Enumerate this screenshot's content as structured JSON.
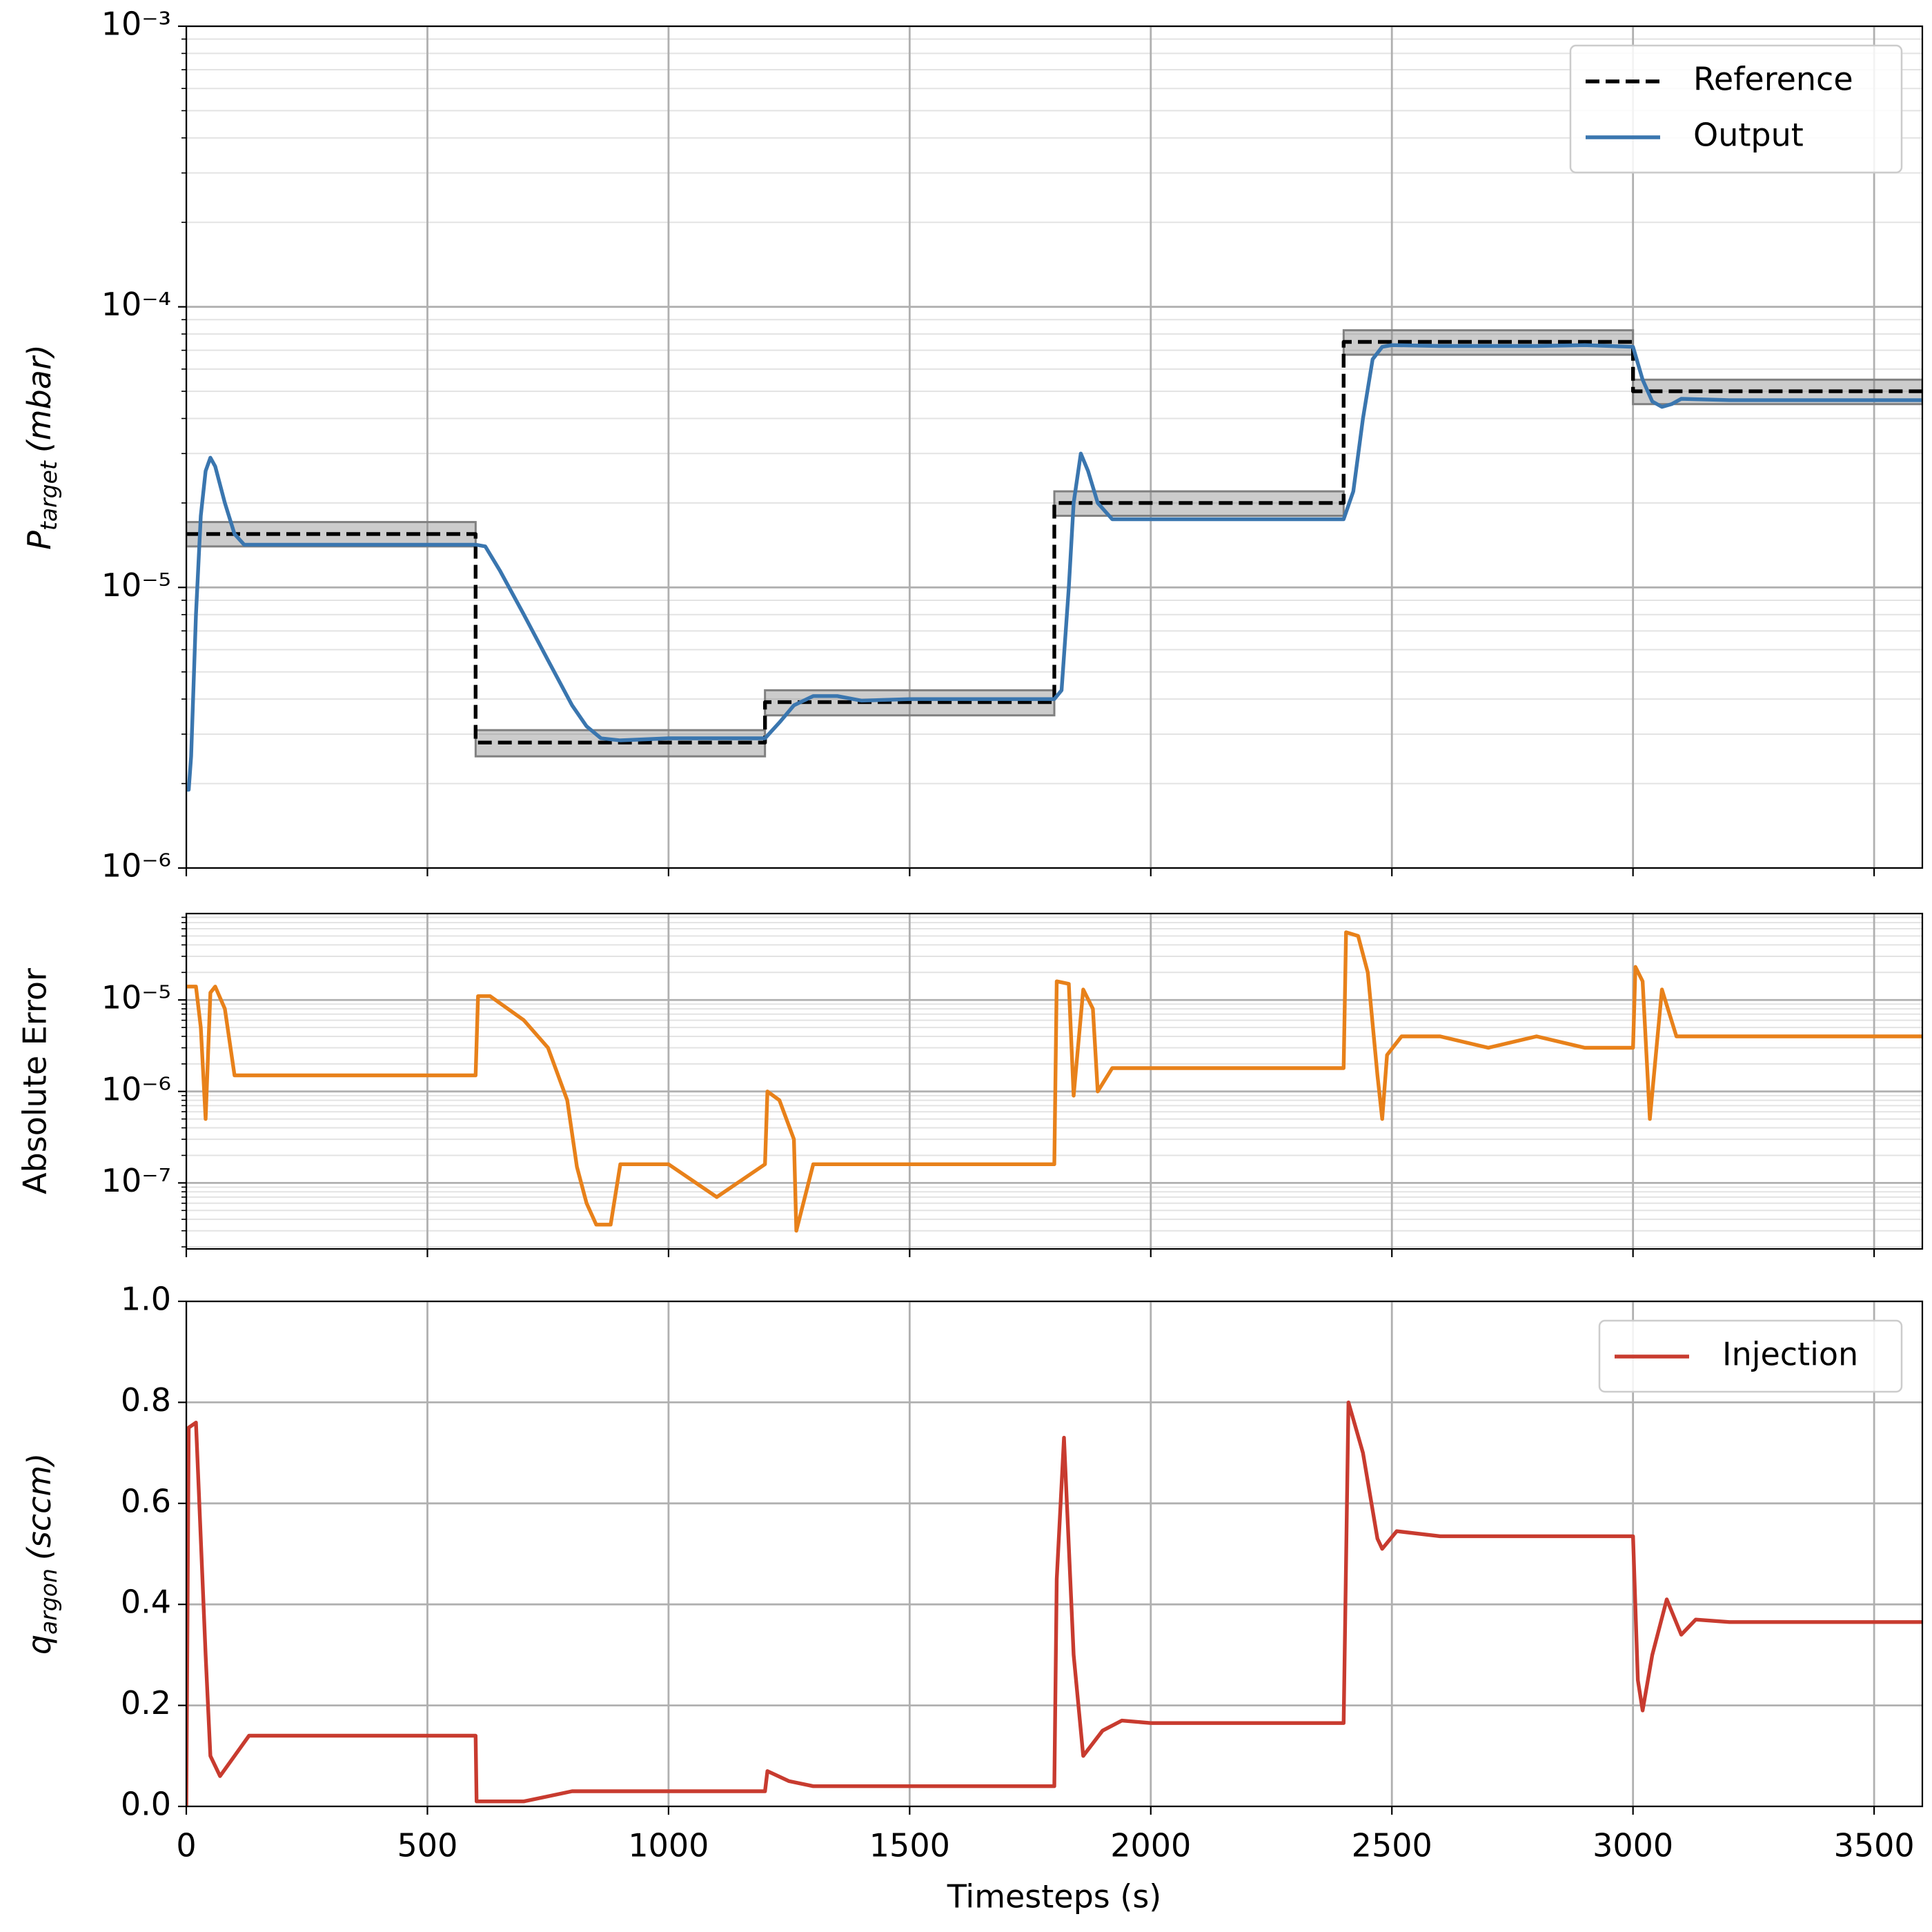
{
  "chart_data": [
    {
      "type": "line",
      "log_y": true,
      "grid": true,
      "sharex": true,
      "legend": "upper right",
      "y_label": {
        "main": "P",
        "sub": "target",
        "rest": "(mbar)"
      },
      "ylim": [
        1e-06,
        0.001
      ],
      "yticks": [
        {
          "value": 1e-06,
          "label": "10⁻⁶"
        },
        {
          "value": 1e-05,
          "label": "10⁻⁵"
        },
        {
          "value": 0.0001,
          "label": "10⁻⁴"
        },
        {
          "value": 0.001,
          "label": "10⁻³"
        }
      ],
      "yminorticks": [
        2e-06,
        3e-06,
        4e-06,
        5e-06,
        6e-06,
        7e-06,
        8e-06,
        9e-06,
        2e-05,
        3e-05,
        4e-05,
        5e-05,
        6e-05,
        7e-05,
        8e-05,
        9e-05,
        0.0002,
        0.0003,
        0.0004,
        0.0005,
        0.0006,
        0.0007,
        0.0008,
        0.0009
      ],
      "bands": {
        "color": "#808080",
        "segments": [
          {
            "x": [
              0,
              600
            ],
            "low": 1.4e-05,
            "high": 1.71e-05
          },
          {
            "x": [
              600,
              1200
            ],
            "low": 2.5e-06,
            "high": 3.1e-06
          },
          {
            "x": [
              1200,
              1800
            ],
            "low": 3.5e-06,
            "high": 4.3e-06
          },
          {
            "x": [
              1800,
              2400
            ],
            "low": 1.8e-05,
            "high": 2.2e-05
          },
          {
            "x": [
              2400,
              3000
            ],
            "low": 6.75e-05,
            "high": 8.25e-05
          },
          {
            "x": [
              3000,
              3600
            ],
            "low": 4.5e-05,
            "high": 5.5e-05
          }
        ]
      },
      "series": [
        {
          "name": "Reference",
          "color": "#000000",
          "dash": true,
          "x": [
            0,
            600,
            600,
            1200,
            1200,
            1800,
            1800,
            2400,
            2400,
            3000,
            3000,
            3600
          ],
          "values": [
            1.55e-05,
            1.55e-05,
            2.8e-06,
            2.8e-06,
            3.9e-06,
            3.9e-06,
            2e-05,
            2e-05,
            7.5e-05,
            7.5e-05,
            5e-05,
            5e-05
          ]
        },
        {
          "name": "Output",
          "color": "#3a76af",
          "dash": false,
          "x": [
            0,
            5,
            10,
            20,
            30,
            40,
            50,
            60,
            80,
            100,
            120,
            200,
            300,
            400,
            500,
            600,
            620,
            650,
            700,
            750,
            800,
            830,
            860,
            900,
            1000,
            1100,
            1200,
            1230,
            1260,
            1300,
            1350,
            1400,
            1500,
            1600,
            1700,
            1800,
            1815,
            1830,
            1840,
            1855,
            1870,
            1890,
            1920,
            2000,
            2100,
            2200,
            2300,
            2400,
            2420,
            2440,
            2460,
            2480,
            2500,
            2600,
            2700,
            2800,
            2900,
            3000,
            3020,
            3040,
            3060,
            3080,
            3100,
            3200,
            3300,
            3400,
            3500,
            3600
          ],
          "values": [
            1.9e-06,
            1.9e-06,
            2.5e-06,
            8e-06,
            1.8e-05,
            2.6e-05,
            2.9e-05,
            2.7e-05,
            2e-05,
            1.55e-05,
            1.42e-05,
            1.42e-05,
            1.42e-05,
            1.42e-05,
            1.42e-05,
            1.42e-05,
            1.4e-05,
            1.15e-05,
            8e-06,
            5.5e-06,
            3.8e-06,
            3.2e-06,
            2.9e-06,
            2.85e-06,
            2.9e-06,
            2.9e-06,
            2.9e-06,
            3.3e-06,
            3.8e-06,
            4.1e-06,
            4.1e-06,
            3.95e-06,
            4e-06,
            4e-06,
            4e-06,
            4e-06,
            4.3e-06,
            1e-05,
            2e-05,
            3e-05,
            2.6e-05,
            2e-05,
            1.75e-05,
            1.75e-05,
            1.75e-05,
            1.75e-05,
            1.75e-05,
            1.75e-05,
            2.2e-05,
            4e-05,
            6.5e-05,
            7.2e-05,
            7.3e-05,
            7.25e-05,
            7.25e-05,
            7.25e-05,
            7.3e-05,
            7.2e-05,
            5.5e-05,
            4.6e-05,
            4.4e-05,
            4.5e-05,
            4.7e-05,
            4.65e-05,
            4.65e-05,
            4.65e-05,
            4.65e-05,
            4.65e-05
          ]
        }
      ]
    },
    {
      "type": "line",
      "log_y": true,
      "grid": true,
      "sharex": true,
      "y_label": "Absolute Error",
      "ylim": [
        1.9e-08,
        8.8e-05
      ],
      "yticks": [
        {
          "value": 1e-07,
          "label": "10⁻⁷"
        },
        {
          "value": 1e-06,
          "label": "10⁻⁶"
        },
        {
          "value": 1e-05,
          "label": "10⁻⁵"
        }
      ],
      "yminorticks": [
        2e-08,
        3e-08,
        4e-08,
        5e-08,
        6e-08,
        7e-08,
        8e-08,
        9e-08,
        2e-07,
        3e-07,
        4e-07,
        5e-07,
        6e-07,
        7e-07,
        8e-07,
        9e-07,
        2e-06,
        3e-06,
        4e-06,
        5e-06,
        6e-06,
        7e-06,
        8e-06,
        9e-06,
        2e-05,
        3e-05,
        4e-05,
        5e-05,
        6e-05,
        7e-05,
        8e-05
      ],
      "series": [
        {
          "color": "#e8811a",
          "dash": false,
          "x": [
            0,
            20,
            30,
            40,
            50,
            60,
            80,
            100,
            200,
            300,
            400,
            500,
            600,
            605,
            630,
            700,
            750,
            790,
            810,
            830,
            850,
            880,
            900,
            1000,
            1100,
            1200,
            1205,
            1230,
            1260,
            1265,
            1300,
            1400,
            1500,
            1600,
            1700,
            1800,
            1805,
            1830,
            1840,
            1860,
            1880,
            1890,
            1920,
            2000,
            2100,
            2200,
            2300,
            2400,
            2405,
            2430,
            2450,
            2470,
            2480,
            2490,
            2520,
            2600,
            2700,
            2800,
            2900,
            3000,
            3005,
            3020,
            3035,
            3060,
            3090,
            3200,
            3300,
            3400,
            3500,
            3600
          ],
          "values": [
            1.4e-05,
            1.4e-05,
            5e-06,
            5e-07,
            1.2e-05,
            1.4e-05,
            8e-06,
            1.5e-06,
            1.5e-06,
            1.5e-06,
            1.5e-06,
            1.5e-06,
            1.5e-06,
            1.1e-05,
            1.1e-05,
            6e-06,
            3e-06,
            8e-07,
            1.5e-07,
            6e-08,
            3.5e-08,
            3.5e-08,
            1.6e-07,
            1.6e-07,
            7e-08,
            1.6e-07,
            1e-06,
            8e-07,
            3e-07,
            3e-08,
            1.6e-07,
            1.6e-07,
            1.6e-07,
            1.6e-07,
            1.6e-07,
            1.6e-07,
            1.6e-05,
            1.5e-05,
            9e-07,
            1.3e-05,
            8e-06,
            1e-06,
            1.8e-06,
            1.8e-06,
            1.8e-06,
            1.8e-06,
            1.8e-06,
            1.8e-06,
            5.5e-05,
            5e-05,
            2e-05,
            1.5e-06,
            5e-07,
            2.5e-06,
            4e-06,
            4e-06,
            3e-06,
            4e-06,
            3e-06,
            3e-06,
            2.3e-05,
            1.6e-05,
            5e-07,
            1.3e-05,
            4e-06,
            4e-06,
            4e-06,
            4e-06,
            4e-06,
            4e-06
          ]
        }
      ]
    },
    {
      "type": "line",
      "log_y": false,
      "grid": true,
      "legend": "upper right",
      "x_label": "Timesteps (s)",
      "y_label": {
        "main": "q",
        "sub": "argon",
        "rest": "(sccm)"
      },
      "xlim": [
        0,
        3600
      ],
      "xticks": [
        0,
        500,
        1000,
        1500,
        2000,
        2500,
        3000,
        3500
      ],
      "ylim": [
        0,
        1
      ],
      "yticks": [
        {
          "value": 0,
          "label": "0.0"
        },
        0.2,
        0.4,
        0.6,
        0.8,
        {
          "value": 1,
          "label": "1.0"
        }
      ],
      "series": [
        {
          "name": "Injection",
          "color": "#c83b2f",
          "dash": false,
          "x": [
            0,
            5,
            20,
            40,
            50,
            70,
            100,
            130,
            600,
            602,
            700,
            750,
            800,
            900,
            1200,
            1205,
            1250,
            1300,
            1800,
            1805,
            1820,
            1840,
            1860,
            1900,
            1940,
            2000,
            2400,
            2410,
            2440,
            2470,
            2480,
            2510,
            2600,
            3000,
            3010,
            3020,
            3040,
            3070,
            3100,
            3130,
            3200,
            3600
          ],
          "values": [
            0,
            0.75,
            0.76,
            0.3,
            0.1,
            0.06,
            0.1,
            0.14,
            0.14,
            0.01,
            0.01,
            0.02,
            0.03,
            0.03,
            0.03,
            0.07,
            0.05,
            0.04,
            0.04,
            0.45,
            0.73,
            0.3,
            0.1,
            0.15,
            0.17,
            0.165,
            0.165,
            0.8,
            0.7,
            0.53,
            0.51,
            0.545,
            0.535,
            0.535,
            0.25,
            0.19,
            0.3,
            0.41,
            0.34,
            0.37,
            0.365,
            0.365
          ]
        }
      ]
    }
  ]
}
